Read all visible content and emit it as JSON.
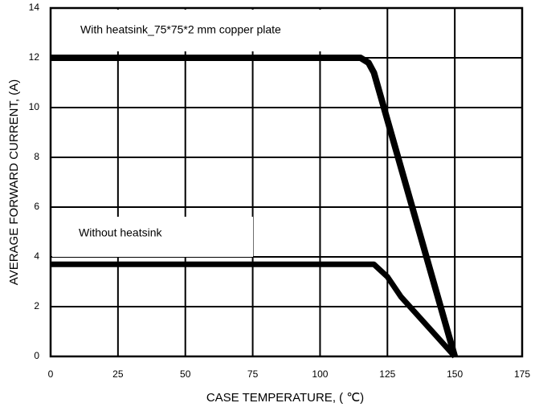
{
  "chart_data": {
    "type": "line",
    "x_label": "CASE TEMPERATURE, ( ℃)",
    "y_label": "AVERAGE FORWARD CURRENT, (A)",
    "annotations": [
      "With heatsink_75*75*2 mm copper plate",
      "Without heatsink"
    ],
    "xlim": [
      0,
      175
    ],
    "xticks": [
      0,
      25,
      50,
      75,
      100,
      125,
      150,
      175
    ],
    "ylim": [
      0,
      14
    ],
    "yticks": [
      0,
      2,
      4,
      6,
      8,
      10,
      12,
      14
    ],
    "grid": true,
    "series": [
      {
        "name": "With heatsink_75*75*2 mm copper plate",
        "color": "#000000",
        "x": [
          0,
          115,
          118,
          120,
          125,
          150
        ],
        "values": [
          12,
          12,
          11.8,
          11.4,
          9.5,
          0
        ]
      },
      {
        "name": "Without heatsink",
        "color": "#000000",
        "x": [
          0,
          120,
          125,
          130,
          150
        ],
        "values": [
          3.7,
          3.7,
          3.2,
          2.4,
          0
        ]
      }
    ]
  }
}
